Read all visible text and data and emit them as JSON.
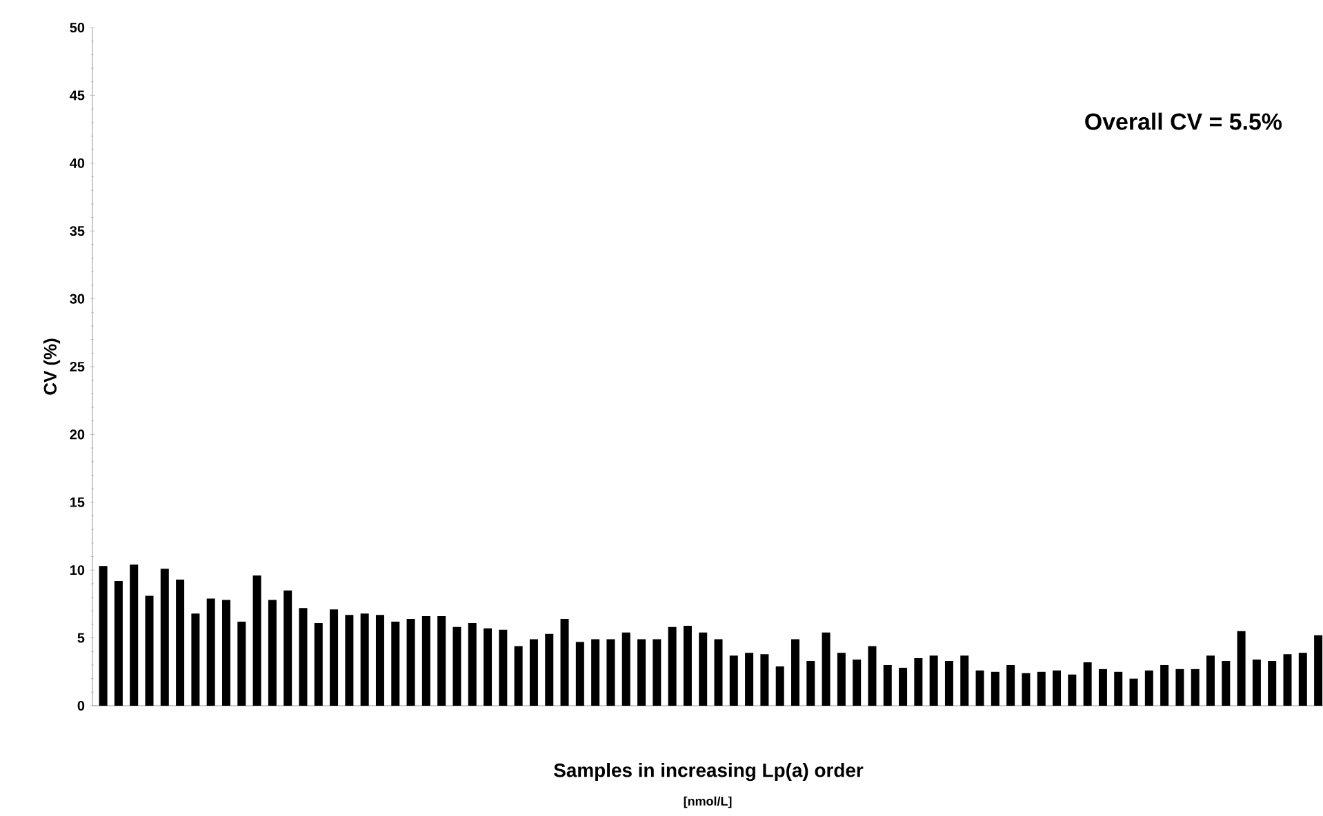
{
  "chart_data": {
    "type": "bar",
    "xlabel": "Samples in increasing Lp(a) order",
    "ylabel": "CV (%)",
    "annotations": [
      "Overall CV = 5.5%",
      "[nmol/L]"
    ],
    "categories": [
      null,
      null,
      null,
      null,
      null,
      null,
      null,
      null,
      null,
      null,
      null,
      null,
      null,
      null,
      null,
      null,
      null,
      null,
      null,
      null,
      null,
      null,
      null,
      null,
      null,
      null,
      null,
      null,
      null,
      null,
      null,
      null,
      null,
      null,
      null,
      null,
      null,
      null,
      null,
      null,
      null,
      null,
      null,
      null,
      null,
      null,
      null,
      null,
      null,
      null,
      null,
      null,
      null,
      null,
      null,
      null,
      null,
      null,
      null,
      null,
      null,
      null,
      null,
      null,
      null,
      null,
      null,
      null,
      null,
      null,
      null,
      null,
      null,
      null,
      null,
      null,
      null,
      null,
      null,
      null
    ],
    "values": [
      10.3,
      9.2,
      10.4,
      8.1,
      10.1,
      9.3,
      6.8,
      7.9,
      7.8,
      6.2,
      9.6,
      7.8,
      8.5,
      7.2,
      6.1,
      7.1,
      6.7,
      6.8,
      6.7,
      6.2,
      6.4,
      6.6,
      6.6,
      5.8,
      6.1,
      5.7,
      5.6,
      4.4,
      4.9,
      5.3,
      6.4,
      4.7,
      4.9,
      4.9,
      5.4,
      4.9,
      4.9,
      5.8,
      5.9,
      5.4,
      4.9,
      3.7,
      3.9,
      3.8,
      2.9,
      4.9,
      3.3,
      5.4,
      3.9,
      3.4,
      4.4,
      3.0,
      2.8,
      3.5,
      3.7,
      3.3,
      3.7,
      2.6,
      2.5,
      3.0,
      2.4,
      2.5,
      2.6,
      2.3,
      3.2,
      2.7,
      2.5,
      2.0,
      2.6,
      3.0,
      2.7,
      2.7,
      3.7,
      3.3,
      5.5,
      3.4,
      3.3,
      3.8,
      3.9,
      5.2
    ],
    "color": "#000000",
    "ylim": [
      0,
      50
    ],
    "yticks": [
      0,
      5,
      10,
      15,
      20,
      25,
      30,
      35,
      40,
      45,
      50
    ]
  }
}
